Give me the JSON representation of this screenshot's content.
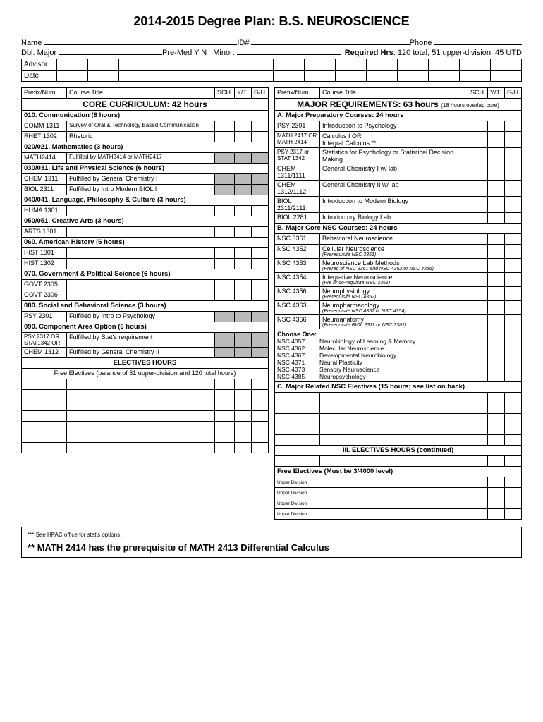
{
  "title": "2014-2015 Degree Plan: B.S. NEUROSCIENCE",
  "info": {
    "name": "Name",
    "id": "ID#",
    "phone": "Phone",
    "dblmajor": "Dbl. Major",
    "premed": "Pre-Med  Y   N",
    "minor": "Minor:",
    "req": "Required Hrs",
    "reqdetail": ": 120 total, 51 upper-division, 45 UTD",
    "advisor": "Advisor",
    "date": "Date"
  },
  "headers": {
    "prefix": "Prefix/Num.",
    "title": "Course Title",
    "sch": "SCH",
    "yt": "Y/T",
    "gh": "G/H"
  },
  "left": {
    "section": "CORE CURRICULUM: 42 hours",
    "r": [
      {
        "t": "sub",
        "txt": "010. Communication (6 hours)"
      },
      {
        "p": "COMM 1311",
        "c": "Survey of Oral & Technology Based Communication",
        "small": true
      },
      {
        "p": "RHET 1302",
        "c": "Rhetoric"
      },
      {
        "t": "sub",
        "txt": "020/021. Mathematics (3 hours)"
      },
      {
        "p": "MATH2414",
        "c": "Fulfilled by MATH2414 or MATH2417",
        "g": true,
        "small": true
      },
      {
        "t": "sub",
        "txt": "030/031. Life and Physical Science (6 hours)"
      },
      {
        "p": "CHEM 1311",
        "c": "Fulfilled by General Chemistry I",
        "g": true
      },
      {
        "p": "BIOL 2311",
        "c": "Fulfilled by Intro Modern BIOL I",
        "g": true
      },
      {
        "t": "sub",
        "txt": "040/041. Language, Philosophy & Culture (3 hours)"
      },
      {
        "p": "HUMA 1301",
        "c": ""
      },
      {
        "t": "sub",
        "txt": "050/051. Creative Arts (3 hours)"
      },
      {
        "p": "ARTS 1301",
        "c": ""
      },
      {
        "t": "sub",
        "txt": "060. American History (6 hours)"
      },
      {
        "p": "HIST 1301",
        "c": ""
      },
      {
        "p": "HIST 1302",
        "c": ""
      },
      {
        "t": "sub",
        "txt": "070. Government & Political Science (6 hours)"
      },
      {
        "p": "GOVT 2305",
        "c": ""
      },
      {
        "p": "GOVT 2306",
        "c": ""
      },
      {
        "t": "sub",
        "txt": "080. Social and Behavioral Science (3 hours)"
      },
      {
        "p": "PSY 2301",
        "c": "Fulfilled by Intro to Psychology",
        "g": true
      },
      {
        "t": "sub",
        "txt": "090. Component Area Option (6 hours)"
      },
      {
        "p": "PSY 2317 OR STAT1342 OR",
        "c": "Fulfilled by Stat's requirement",
        "g": true,
        "tall": true
      },
      {
        "p": "CHEM 1312",
        "c": "Fulfilled by General Chemistry II",
        "g": true
      }
    ],
    "elect_hdr": "ELECTIVES HOURS",
    "elect_sub": "Free Electives (balance of 51 upper-division and 120 total hours)"
  },
  "right": {
    "section": "MAJOR REQUIREMENTS: 63 hours",
    "section_note": "(18 hours overlap core)",
    "r": [
      {
        "t": "sub",
        "txt": "A. Major Preparatory Courses: 24 hours"
      },
      {
        "p": "PSY 2301",
        "c": "Introduction to Psychology"
      },
      {
        "p": "MATH 2417 OR MATH 2414",
        "c": "Calculus I   OR\nIntegral Calculus **",
        "tall": true
      },
      {
        "p": "PSY 2317 or STAT 1342",
        "c": "Statistics for Psychology or Statistical Decision Making",
        "tall": true
      },
      {
        "p": "CHEM 1311/1111",
        "c": "General Chemistry I w/ lab"
      },
      {
        "p": "CHEM 1312/1112",
        "c": "General Chemistry II w/ lab"
      },
      {
        "p": "BIOL 2311/2111",
        "c": "Introduction to Modern Biology"
      },
      {
        "p": "BIOL 2281",
        "c": "Introductory Biology Lab"
      },
      {
        "t": "sub",
        "txt": "B. Major Core NSC Courses: 24 hours"
      },
      {
        "p": "NSC 3361",
        "c": "Behavioral Neuroscience"
      },
      {
        "p": "NSC 4352",
        "c": "Cellular Neuroscience",
        "n": "(Prerequisite NSC 3361)"
      },
      {
        "p": "NSC 4353",
        "c": "Neuroscience Lab Methods",
        "n": "(Prereq of NSC 3361 and NSC 4352 or NSC 4356)"
      },
      {
        "p": "NSC 4354",
        "c": "Integrative Neuroscience",
        "n": "(Pre or co-requisite  NSC 3361)"
      },
      {
        "p": "NSC 4356",
        "c": "Neurophysiology",
        "n": "(Prerequisite  NSC 4352)"
      },
      {
        "p": "NSC 4363",
        "c": "Neuropharmacology",
        "n": "(Prerequisite NSC 4352 or NSC 4354)"
      },
      {
        "p": "NSC 4366",
        "c": "Neuroanatomy",
        "n": "(Prerequisite  BIOL 2311 or NSC 3361)"
      },
      {
        "t": "choose",
        "txt": "Choose One:",
        "items": [
          {
            "p": "NSC 4357",
            "c": "Neurobiology of Learning & Memory"
          },
          {
            "p": "NSC 4362",
            "c": "Molecular Neuroscience"
          },
          {
            "p": "NSC 4367",
            "c": "Developmental Neurobiology"
          },
          {
            "p": "NSC 4371",
            "c": "Neural Plasticity"
          },
          {
            "p": "NSC 4373",
            "c": "Sensory Neuroscience"
          },
          {
            "p": "NSC 4385",
            "c": "Neuropsychology"
          }
        ]
      },
      {
        "t": "sub",
        "txt": "C. Major Related NSC Electives (15 hours; see list on back)"
      }
    ],
    "elect3_hdr": "III. ELECTIVES HOURS (continued)",
    "free_hdr": "Free Electives (Must be 3/4000 level)",
    "upper": "Upper Division"
  },
  "foot": {
    "l1": "*** See HPAC office for stat's options.",
    "l2": "** MATH 2414 has the prerequisite of MATH 2413 Differential Calculus"
  }
}
